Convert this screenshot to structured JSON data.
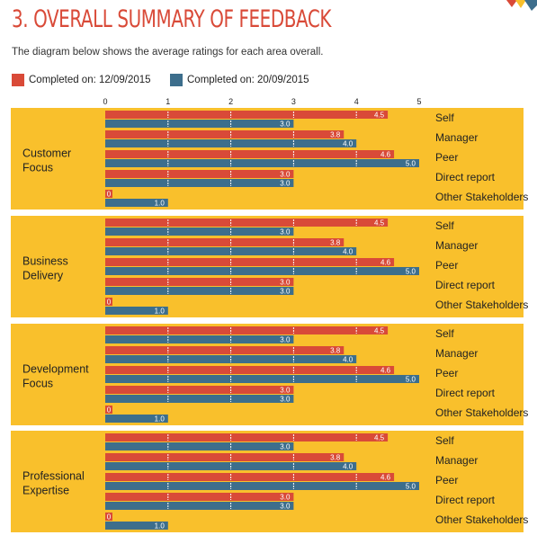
{
  "title": "3. OVERALL SUMMARY OF FEEDBACK",
  "subtitle": "The diagram below shows the average ratings for each area overall.",
  "legend": [
    {
      "label": "Completed on:  12/09/2015",
      "color": "#d94a38"
    },
    {
      "label": "Completed on:  20/09/2015",
      "color": "#3d6e8c"
    }
  ],
  "colors": {
    "panel": "#f9c02c",
    "red": "#d94a38",
    "blue": "#3d6e8c",
    "title": "#d94a38"
  },
  "chart_data": {
    "type": "bar",
    "orientation": "horizontal",
    "xlim": [
      0,
      5
    ],
    "x_ticks": [
      "0",
      "1",
      "2",
      "3",
      "4",
      "5"
    ],
    "categories": [
      "Self",
      "Manager",
      "Peer",
      "Direct report",
      "Other Stakeholders"
    ],
    "series": [
      {
        "name": "Completed on:  12/09/2015",
        "color": "#d94a38"
      },
      {
        "name": "Completed on:  20/09/2015",
        "color": "#3d6e8c"
      }
    ],
    "groups": [
      {
        "name": "Customer Focus",
        "lines": [
          "Customer",
          "Focus"
        ],
        "values": [
          [
            4.5,
            3.0
          ],
          [
            3.8,
            4.0
          ],
          [
            4.6,
            5.0
          ],
          [
            3.0,
            3.0
          ],
          [
            0,
            1.0
          ]
        ]
      },
      {
        "name": "Business Delivery",
        "lines": [
          "Business",
          "Delivery"
        ],
        "values": [
          [
            4.5,
            3.0
          ],
          [
            3.8,
            4.0
          ],
          [
            4.6,
            5.0
          ],
          [
            3.0,
            3.0
          ],
          [
            0,
            1.0
          ]
        ]
      },
      {
        "name": "Development Focus",
        "lines": [
          "Development",
          "Focus"
        ],
        "values": [
          [
            4.5,
            3.0
          ],
          [
            3.8,
            4.0
          ],
          [
            4.6,
            5.0
          ],
          [
            3.0,
            3.0
          ],
          [
            0,
            1.0
          ]
        ]
      },
      {
        "name": "Professional Expertise",
        "lines": [
          "Professional",
          "Expertise"
        ],
        "values": [
          [
            4.5,
            3.0
          ],
          [
            3.8,
            4.0
          ],
          [
            4.6,
            5.0
          ],
          [
            3.0,
            3.0
          ],
          [
            0,
            1.0
          ]
        ]
      }
    ]
  }
}
